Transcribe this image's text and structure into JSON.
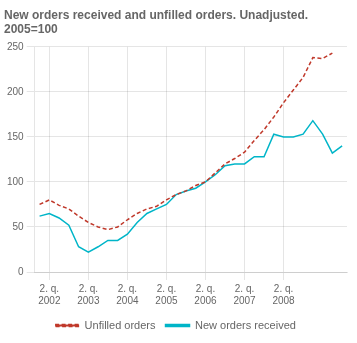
{
  "chart_data": {
    "type": "line",
    "title": "New orders received and unfilled orders. Unadjusted.\n2005=100",
    "categories": [
      null,
      "2. q.\n2002",
      null,
      null,
      null,
      "2. q.\n2003",
      null,
      null,
      null,
      "2. q.\n2004",
      null,
      null,
      null,
      "2. q.\n2005",
      null,
      null,
      null,
      "2. q.\n2006",
      null,
      null,
      null,
      "2. q.\n2007",
      null,
      null,
      null,
      "2. q.\n2008",
      null,
      null,
      null,
      null,
      null,
      null
    ],
    "series": [
      {
        "name": "Unfilled orders",
        "color": "#c0392b",
        "line_style": "dashed",
        "values": [
          75,
          80,
          74,
          70,
          62,
          55,
          50,
          47,
          50,
          58,
          65,
          70,
          73,
          80,
          86,
          90,
          96,
          100,
          110,
          120,
          126,
          133,
          146,
          158,
          172,
          188,
          202,
          216,
          238,
          237,
          243,
          null
        ]
      },
      {
        "name": "New orders received",
        "color": "#00b5c8",
        "line_style": "solid",
        "values": [
          62,
          65,
          60,
          52,
          28,
          22,
          28,
          35,
          35,
          42,
          55,
          65,
          70,
          75,
          86,
          90,
          93,
          100,
          108,
          118,
          120,
          120,
          128,
          128,
          153,
          150,
          150,
          153,
          168,
          153,
          132,
          140
        ]
      }
    ],
    "ylim": [
      0,
      250
    ],
    "yticks": [
      0,
      50,
      100,
      150,
      200,
      250
    ],
    "grid": true,
    "legend": "bottom"
  }
}
